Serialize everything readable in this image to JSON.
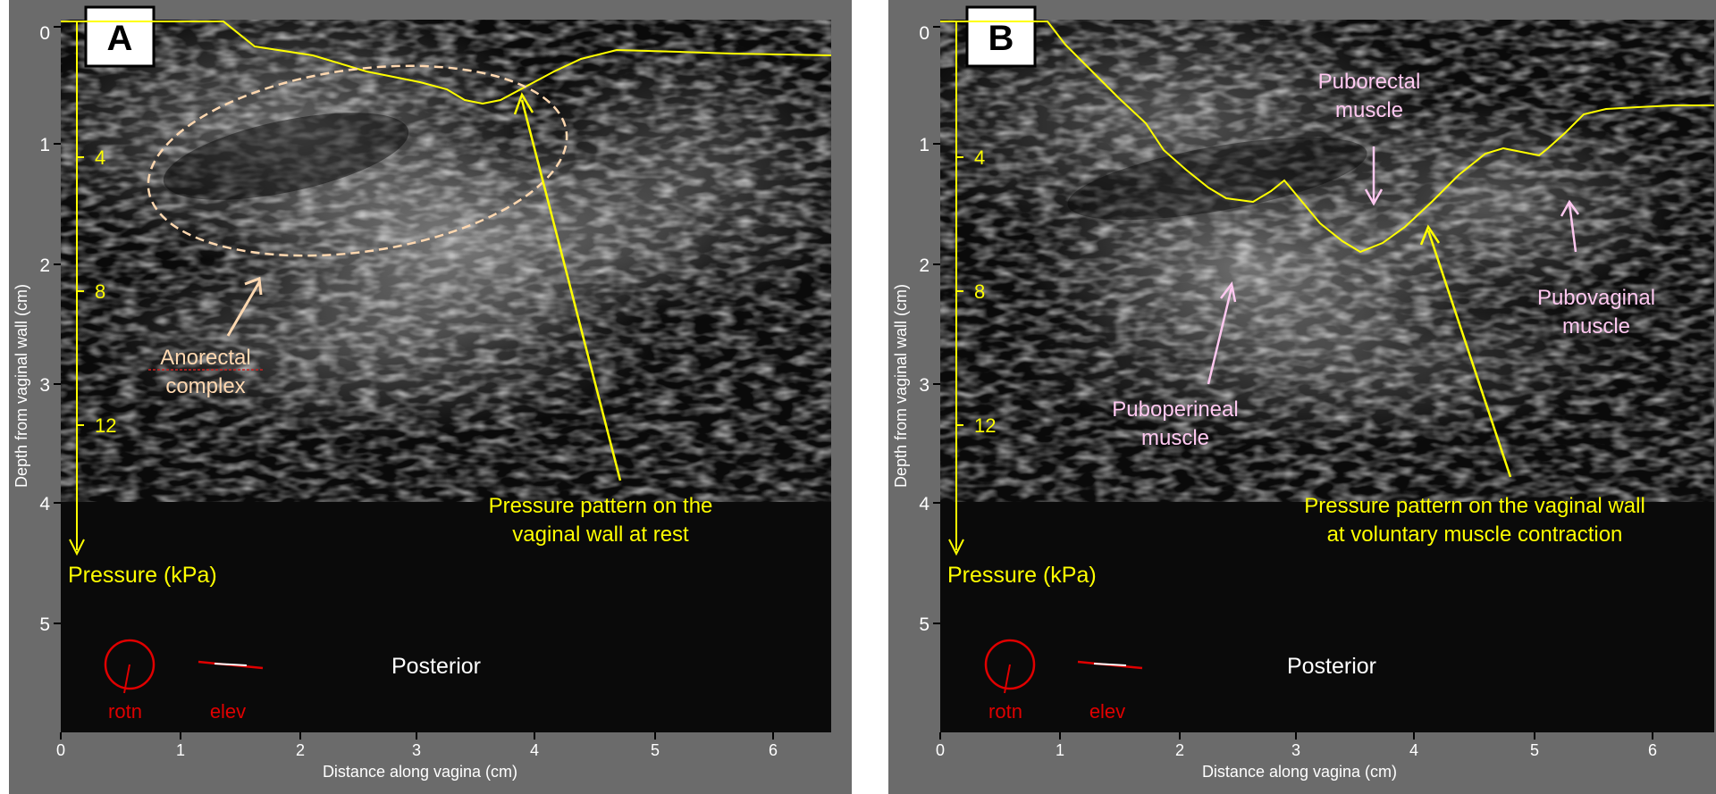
{
  "panels": [
    {
      "letter": "A",
      "y_axis_label": "Depth from vaginal wall (cm)",
      "x_axis_label": "Distance along vagina (cm)",
      "y_ticks": [
        "0",
        "1",
        "2",
        "3",
        "4",
        "5"
      ],
      "x_ticks": [
        "0",
        "1",
        "2",
        "3",
        "4",
        "5",
        "6"
      ],
      "pressure_ticks": [
        "4",
        "8",
        "12"
      ],
      "pressure_label": "Pressure (kPa)",
      "orientation_label": "Posterior",
      "rotn_label": "rotn",
      "elev_label": "elev",
      "annotations": {
        "complex_line1": "Anorectal",
        "complex_line2": "complex",
        "pressure_line1": "Pressure pattern on the",
        "pressure_line2": "vaginal wall at rest"
      }
    },
    {
      "letter": "B",
      "y_axis_label": "Depth from vaginal wall (cm)",
      "x_axis_label": "Distance along vagina (cm)",
      "y_ticks": [
        "0",
        "1",
        "2",
        "3",
        "4",
        "5"
      ],
      "x_ticks": [
        "0",
        "1",
        "2",
        "3",
        "4",
        "5",
        "6"
      ],
      "pressure_ticks": [
        "4",
        "8",
        "12"
      ],
      "pressure_label": "Pressure (kPa)",
      "orientation_label": "Posterior",
      "rotn_label": "rotn",
      "elev_label": "elev",
      "annotations": {
        "puborectal_line1": "Puborectal",
        "puborectal_line2": "muscle",
        "pubovaginal_line1": "Pubovaginal",
        "pubovaginal_line2": "muscle",
        "puboperineal_line1": "Puboperineal",
        "puboperineal_line2": "muscle",
        "pressure_line1": "Pressure pattern on the vaginal wall",
        "pressure_line2": "at voluntary muscle contraction"
      }
    }
  ],
  "colors": {
    "frame": "#6b6b6b",
    "image_bg": "#0a0a0a",
    "pressure_curve": "#ffff00",
    "annotation_peach": "#ffd8b0",
    "annotation_pink": "#ffc8f0",
    "probe_marker": "#e00000"
  }
}
